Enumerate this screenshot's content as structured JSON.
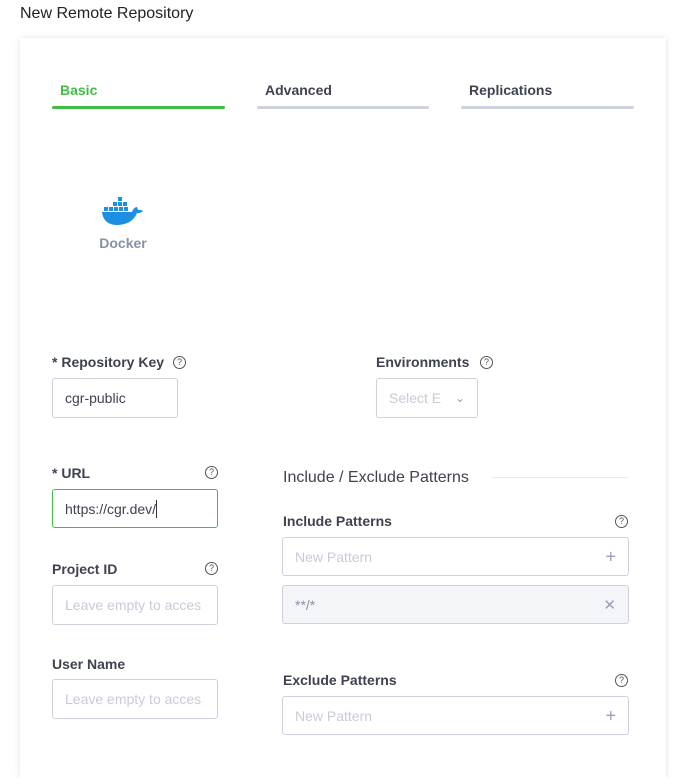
{
  "title": "New Remote Repository",
  "tabs": [
    {
      "label": "Basic",
      "active": true
    },
    {
      "label": "Advanced"
    },
    {
      "label": "Replications"
    }
  ],
  "package_type": {
    "label": "Docker",
    "icon": "docker-whale-icon"
  },
  "fields": {
    "repo_key": {
      "label": "* Repository Key",
      "value": "cgr-public"
    },
    "environments": {
      "label": "Environments",
      "placeholder": "Select E"
    },
    "url": {
      "label": "* URL",
      "value": "https://cgr.dev/"
    },
    "project_id": {
      "label": "Project ID",
      "placeholder": "Leave empty to acces"
    },
    "user_name": {
      "label": "User Name",
      "placeholder": "Leave empty to acces"
    }
  },
  "patterns": {
    "heading": "Include / Exclude Patterns",
    "include_label": "Include Patterns",
    "include_placeholder": "New Pattern",
    "include_items": [
      "**/*"
    ],
    "exclude_label": "Exclude Patterns",
    "exclude_placeholder": "New Pattern"
  },
  "help_glyph": "?",
  "colors": {
    "accent": "#40be46",
    "docker": "#1d8fe3"
  }
}
